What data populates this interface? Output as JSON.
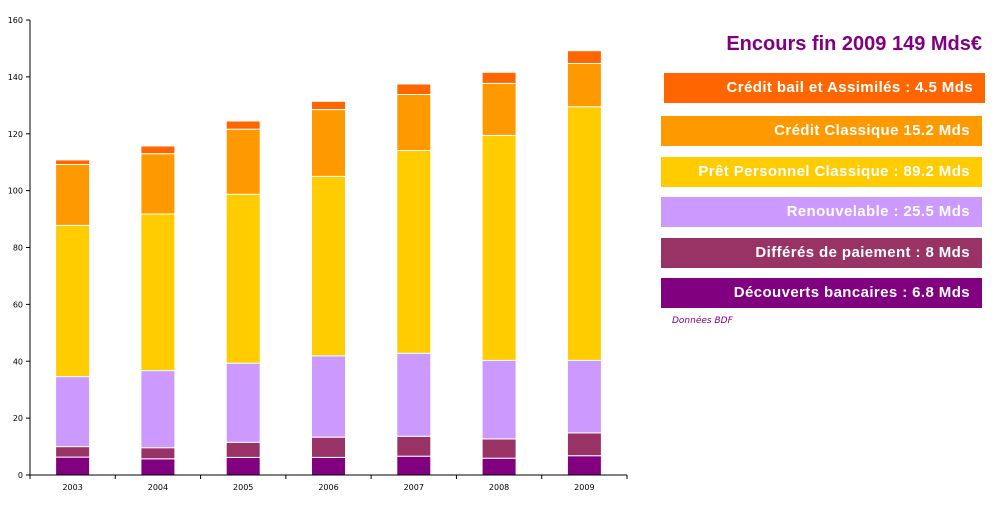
{
  "chart_data": {
    "type": "bar",
    "stacked": true,
    "title": "Encours fin 2009 149 Mds€",
    "xlabel": "",
    "ylabel": "",
    "ylim": [
      0,
      160
    ],
    "yticks": [
      0,
      20,
      40,
      60,
      80,
      100,
      120,
      140,
      160
    ],
    "grid": false,
    "legend_position": "right",
    "categories": [
      "2003",
      "2004",
      "2005",
      "2006",
      "2007",
      "2008",
      "2009"
    ],
    "series": [
      {
        "name": "Découverts bancaires",
        "color": "#800080",
        "values": [
          6.3,
          5.7,
          6.2,
          6.2,
          6.6,
          5.9,
          6.8
        ]
      },
      {
        "name": "Différés de paiement",
        "color": "#993366",
        "values": [
          3.7,
          3.9,
          5.3,
          7.1,
          7.0,
          6.8,
          8.0
        ]
      },
      {
        "name": "Renouvelable",
        "color": "#CC99FF",
        "values": [
          24.6,
          27.1,
          27.8,
          28.6,
          29.2,
          27.6,
          25.5
        ]
      },
      {
        "name": "Prêt Personnel Classique",
        "color": "#FFCC00",
        "values": [
          53.2,
          55.1,
          59.4,
          63.1,
          71.3,
          79.1,
          89.2
        ]
      },
      {
        "name": "Crédit Classique",
        "color": "#FF9900",
        "values": [
          21.4,
          21.2,
          22.9,
          23.5,
          19.7,
          18.3,
          15.2
        ]
      },
      {
        "name": "Crédit bail et Assimilés",
        "color": "#FF6600",
        "values": [
          1.6,
          2.7,
          2.9,
          2.9,
          3.7,
          3.9,
          4.5
        ]
      }
    ]
  },
  "legend": {
    "title": "Encours fin 2009 149 Mds€",
    "items": [
      {
        "label": "Crédit bail et Assimilés :  4.5 Mds",
        "color": "#FF6600"
      },
      {
        "label": "Crédit Classique 15.2 Mds",
        "color": "#FF9900"
      },
      {
        "label": "Prêt Personnel Classique :  89.2 Mds",
        "color": "#FFCC00"
      },
      {
        "label": "Renouvelable : 25.5 Mds",
        "color": "#CC99FF"
      },
      {
        "label": "Différés de paiement :  8 Mds",
        "color": "#993366"
      },
      {
        "label": "Découverts bancaires :  6.8 Mds",
        "color": "#800080"
      }
    ],
    "source": "Données BDF"
  }
}
